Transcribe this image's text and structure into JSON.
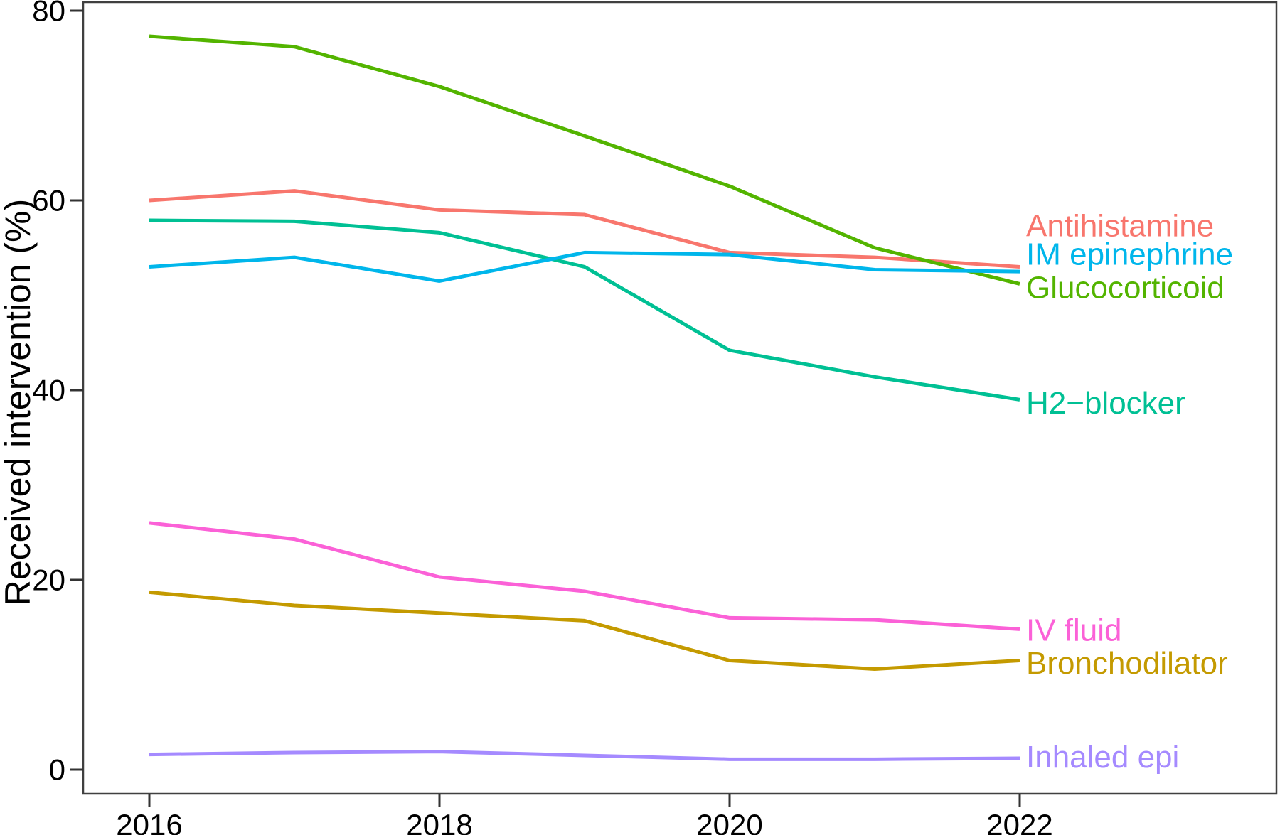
{
  "figure": {
    "background_color": "#FFFFFF",
    "panel_border_color": "#404040",
    "tick_color": "#333333",
    "axis_text_color": "#000000"
  },
  "chart_data": {
    "type": "line",
    "title": "",
    "xlabel": "",
    "ylabel": "Received intervention (%)",
    "x": [
      2016,
      2017,
      2018,
      2019,
      2020,
      2021,
      2022
    ],
    "xticks": [
      "2016",
      "2018",
      "2020",
      "2022"
    ],
    "yticks": [
      "0",
      "20",
      "40",
      "60",
      "80"
    ],
    "ylim": [
      0,
      80
    ],
    "xlim": [
      2015.55,
      2023.75
    ],
    "grid": false,
    "legend": "direct labels to the right of line ends",
    "series": [
      {
        "name": "Antihistamine",
        "color": "#F8766D",
        "values": [
          60.0,
          61.0,
          59.0,
          58.5,
          54.5,
          54.0,
          53.0
        ],
        "label_value": 57.3
      },
      {
        "name": "Bronchodilator",
        "color": "#C49A00",
        "values": [
          18.7,
          17.3,
          16.5,
          15.7,
          11.5,
          10.6,
          11.5
        ],
        "label_value": 11.2
      },
      {
        "name": "Glucocorticoid",
        "color": "#53B400",
        "values": [
          77.3,
          76.2,
          72.0,
          66.8,
          61.5,
          55.0,
          51.2
        ],
        "label_value": 50.8
      },
      {
        "name": "H2−blocker",
        "color": "#00C094",
        "values": [
          57.9,
          57.8,
          56.6,
          53.0,
          44.2,
          41.4,
          39.0
        ],
        "label_value": 38.6
      },
      {
        "name": "IM epinephrine",
        "color": "#00B6EB",
        "values": [
          53.0,
          54.0,
          51.5,
          54.5,
          54.3,
          52.7,
          52.5
        ],
        "label_value": 54.3
      },
      {
        "name": "Inhaled epi",
        "color": "#A58AFF",
        "values": [
          1.6,
          1.8,
          1.9,
          1.5,
          1.1,
          1.1,
          1.2
        ],
        "label_value": 1.3
      },
      {
        "name": "IV fluid",
        "color": "#FB61D7",
        "values": [
          26.0,
          24.3,
          20.3,
          18.8,
          16.0,
          15.8,
          14.8
        ],
        "label_value": 14.7
      }
    ]
  }
}
